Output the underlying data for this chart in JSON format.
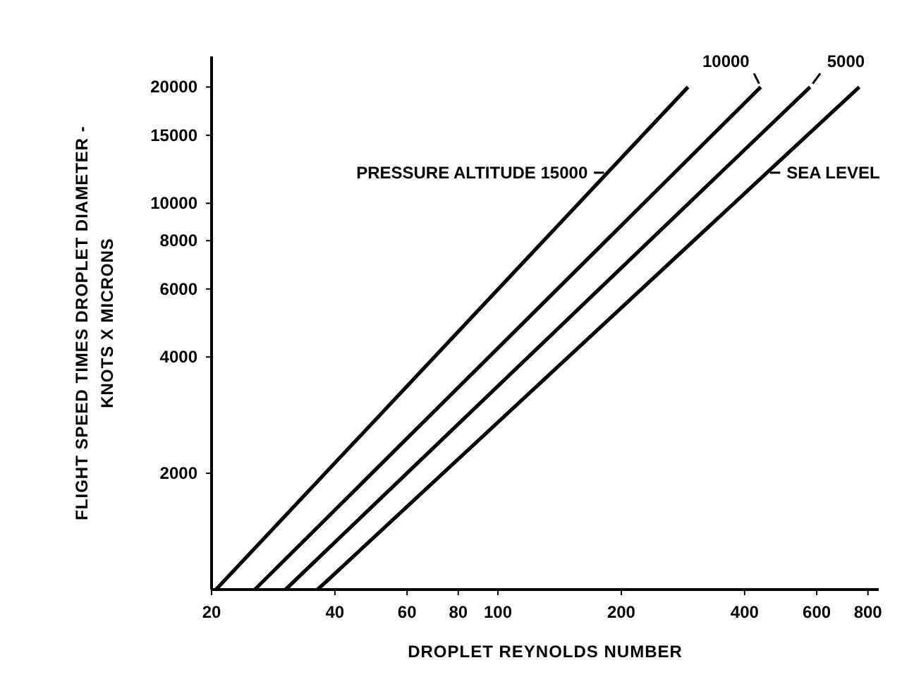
{
  "chart_data": {
    "type": "line",
    "xlabel": "DROPLET REYNOLDS NUMBER",
    "ylabel": "FLIGHT SPEED TIMES DROPLET DIAMETER -\nKNOTS X MICRONS",
    "log": "xy",
    "grid": false,
    "line_style": "solid",
    "xlim": [
      20,
      850
    ],
    "xticks": [
      20,
      40,
      60,
      80,
      100,
      200,
      400,
      600,
      800
    ],
    "ylim": [
      1000,
      24000
    ],
    "yticks": [
      2000,
      4000,
      6000,
      8000,
      10000,
      15000,
      20000
    ],
    "series": [
      {
        "color": "#000000",
        "x": [
          20.5,
          291
        ],
        "values": [
          1000,
          20000
        ]
      },
      {
        "color": "#000000",
        "x": [
          25.5,
          438
        ],
        "values": [
          1000,
          20000
        ]
      },
      {
        "color": "#000000",
        "x": [
          30.3,
          578
        ],
        "values": [
          1000,
          20000
        ]
      },
      {
        "color": "#000000",
        "x": [
          36.3,
          762
        ],
        "values": [
          1000,
          20000
        ]
      }
    ],
    "annotations": [
      {
        "text": "PRESSURE ALTITUDE 15000",
        "x": 185,
        "y": 12000
      },
      {
        "text": "10000",
        "x": 438,
        "y": 20000
      },
      {
        "text": "5000",
        "x": 578,
        "y": 20000
      },
      {
        "text": "SEA LEVEL",
        "x": 453,
        "y": 12000
      }
    ]
  }
}
